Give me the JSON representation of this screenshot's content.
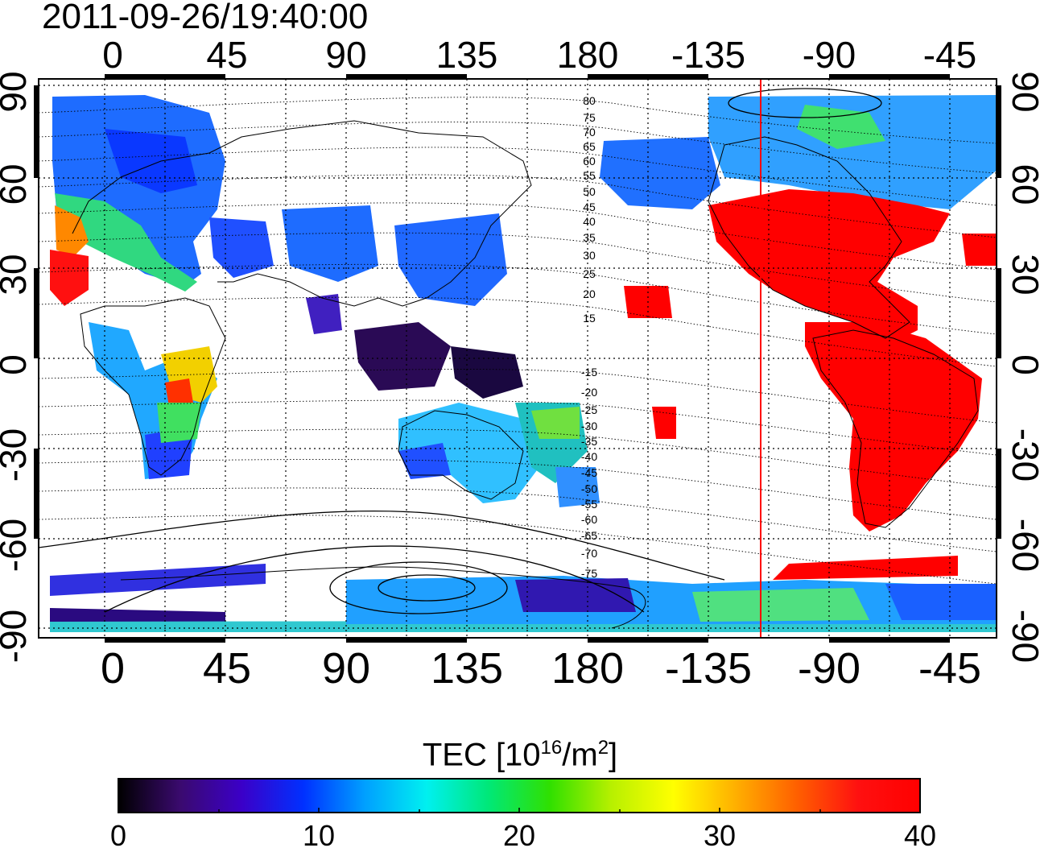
{
  "title": "2011-09-26/19:40:00",
  "map": {
    "top_lon_labels": [
      "0",
      "45",
      "90",
      "135",
      "180",
      "-135",
      "-90",
      "-45"
    ],
    "bottom_lon_labels": [
      "0",
      "45",
      "90",
      "135",
      "180",
      "-135",
      "-90",
      "-45"
    ],
    "left_lat_labels": [
      "90",
      "60",
      "30",
      "0",
      "-30",
      "-60",
      "-90"
    ],
    "right_lat_labels": [
      "90",
      "60",
      "30",
      "0",
      "-30",
      "-60",
      "-90"
    ],
    "contour_labels_north": [
      "80",
      "75",
      "70",
      "65",
      "60",
      "55",
      "50",
      "45",
      "40",
      "35",
      "30",
      "25",
      "20",
      "15"
    ],
    "contour_labels_south": [
      "-15",
      "-20",
      "-25",
      "-30",
      "-35",
      "-40",
      "-45",
      "-50",
      "-55",
      "-60",
      "-65",
      "-70",
      "-75"
    ],
    "marker_line_color": "#ff0000"
  },
  "colorbar": {
    "title_main": "TEC  [10",
    "title_sup1": "16",
    "title_mid": "/m",
    "title_sup2": "2",
    "title_end": "]",
    "tick_labels": [
      "0",
      "10",
      "20",
      "30",
      "40"
    ],
    "min": 0,
    "max": 40,
    "colors": [
      "#000000",
      "#3a0a6e",
      "#3b00c8",
      "#0030ff",
      "#00a0ff",
      "#00f0f0",
      "#00e878",
      "#30e000",
      "#b8f000",
      "#ffff00",
      "#ffb000",
      "#ff6000",
      "#ff1010",
      "#ff0000"
    ]
  }
}
